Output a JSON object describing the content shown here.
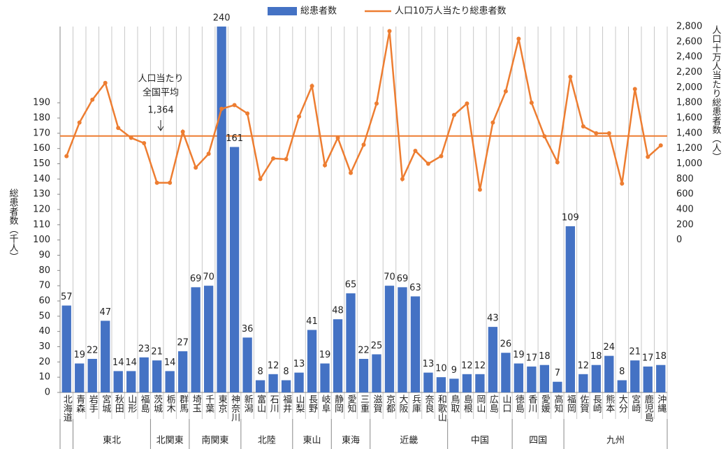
{
  "chart_data": {
    "type": "bar",
    "categories": [
      "北海道",
      "青森",
      "岩手",
      "宮城",
      "秋田",
      "山形",
      "福島",
      "茨城",
      "栃木",
      "群馬",
      "埼玉",
      "千葉",
      "東京",
      "神奈川",
      "新潟",
      "富山",
      "石川",
      "福井",
      "山梨",
      "長野",
      "岐阜",
      "静岡",
      "愛知",
      "三重",
      "滋賀",
      "京都",
      "大阪",
      "兵庫",
      "奈良",
      "和歌山",
      "鳥取",
      "島根",
      "岡山",
      "広島",
      "山口",
      "徳島",
      "香川",
      "愛媛",
      "高知",
      "福岡",
      "佐賀",
      "長崎",
      "熊本",
      "大分",
      "宮崎",
      "鹿児島",
      "沖縄"
    ],
    "groups": [
      {
        "name": "東北",
        "size": 6
      },
      {
        "name": "北関東",
        "size": 3
      },
      {
        "name": "南関東",
        "size": 4
      },
      {
        "name": "北陸",
        "size": 4
      },
      {
        "name": "東山",
        "size": 3
      },
      {
        "name": "東海",
        "size": 3
      },
      {
        "name": "近畿",
        "size": 6
      },
      {
        "name": "中国",
        "size": 5
      },
      {
        "name": "四国",
        "size": 4
      },
      {
        "name": "九州",
        "size": 8
      }
    ],
    "series": [
      {
        "name": "総患者数",
        "type": "bar",
        "color": "#4472c4",
        "values": [
          57,
          19,
          22,
          47,
          14,
          14,
          23,
          21,
          14,
          27,
          69,
          70,
          240,
          161,
          36,
          8,
          12,
          8,
          13,
          41,
          19,
          48,
          65,
          22,
          25,
          70,
          69,
          63,
          13,
          10,
          9,
          12,
          12,
          43,
          26,
          19,
          17,
          18,
          7,
          109,
          12,
          18,
          24,
          8,
          21,
          17,
          18
        ]
      },
      {
        "name": "人口10万人当たり総患者数",
        "type": "line",
        "axis": "y2",
        "color": "#ed7d31",
        "values": [
          1100,
          1540,
          1840,
          2060,
          1470,
          1340,
          1270,
          750,
          750,
          1420,
          950,
          1130,
          1720,
          1770,
          1660,
          800,
          1070,
          1060,
          1620,
          2020,
          980,
          1340,
          880,
          1250,
          1790,
          2740,
          800,
          1170,
          1000,
          1100,
          1640,
          1790,
          660,
          1540,
          1950,
          2640,
          1800,
          1360,
          1020,
          2140,
          1490,
          1400,
          1400,
          740,
          1980,
          1090,
          1240
        ]
      }
    ],
    "ylabel": "総患者数（千人）",
    "y2label": "人口十万人当たり総患者数（人）",
    "ylim": [
      0,
      240
    ],
    "yticks": [
      0,
      10,
      20,
      30,
      40,
      50,
      60,
      70,
      80,
      90,
      100,
      110,
      120,
      130,
      140,
      150,
      160,
      170,
      180,
      190
    ],
    "y2lim": [
      -2000,
      2800
    ],
    "y2ticks": [
      0,
      200,
      400,
      600,
      800,
      {
        "value": 1000,
        "label": "1,000"
      },
      {
        "value": 1200,
        "label": "1,200"
      },
      {
        "value": 1400,
        "label": "1,400"
      },
      {
        "value": 1600,
        "label": "1,600"
      },
      {
        "value": 1800,
        "label": "1,800"
      },
      {
        "value": 2000,
        "label": "2,000"
      },
      {
        "value": 2200,
        "label": "2,200"
      },
      {
        "value": 2400,
        "label": "2,400"
      },
      {
        "value": 2600,
        "label": "2,600"
      },
      {
        "value": 2800,
        "label": "2,800"
      }
    ],
    "annotation": {
      "lines": [
        "人口当たり",
        "全国平均"
      ],
      "average": {
        "value": 1364,
        "label": "1,364"
      }
    },
    "legend": "top"
  }
}
